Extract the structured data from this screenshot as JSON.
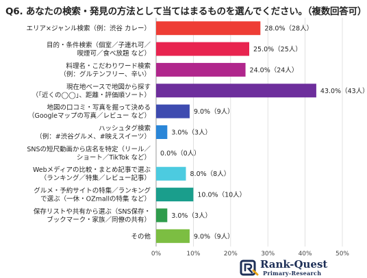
{
  "title": "Q6. あなたの検索・発見の方法として当てはまるものを選んでください。（複数回答可）",
  "chart_data": {
    "type": "bar",
    "orientation": "horizontal",
    "title": "Q6. あなたの検索・発見の方法として当てはまるものを選んでください。（複数回答可）",
    "categories": [
      [
        "エリア×ジャンル検索（例：渋谷 カレー）"
      ],
      [
        "目的・条件検索（個室／子連れ可／",
        "喫煙可／食べ放題 など）"
      ],
      [
        "料理名・こだわりワード検索",
        "（例：グルテンフリー、辛い）"
      ],
      [
        "現在地ベースで地図から探す",
        "（「近くの◯◯」、距離・評価順ソート）"
      ],
      [
        "地図の口コミ・写真を掘って決める",
        "（Googleマップの写真／レビュー など）"
      ],
      [
        "ハッシュタグ検索",
        "（例：#渋谷グルメ、#映えスイーツ）"
      ],
      [
        "SNSの短尺動画から店名を特定（リール／",
        "ショート／TikTok など）"
      ],
      [
        "Webメディアの比較・まとめ記事で選ぶ",
        "（ランキング／特集／レビュー記事）"
      ],
      [
        "グルメ・予約サイトの特集／ランキング",
        "で選ぶ（一休・OZmallの特集 など）"
      ],
      [
        "保存リストや共有から選ぶ（SNS保存・",
        "ブックマーク・家族／同僚の共有）"
      ],
      [
        "その他"
      ]
    ],
    "values": [
      28.0,
      25.0,
      24.0,
      43.0,
      9.0,
      3.0,
      0.0,
      8.0,
      10.0,
      3.0,
      9.0
    ],
    "counts": [
      28,
      25,
      24,
      43,
      9,
      3,
      0,
      8,
      10,
      3,
      9
    ],
    "value_labels": [
      "28.0%（28人）",
      "25.0%（25人）",
      "24.0%（24人）",
      "43.0%（43人）",
      "9.0%（9人）",
      "3.0%（3人）",
      "0.0%（0人）",
      "8.0%（8人）",
      "10.0%（10人）",
      "3.0%（3人）",
      "9.0%（9人）"
    ],
    "colors": [
      "#ee3d35",
      "#e8244f",
      "#b0268c",
      "#6d2e9c",
      "#3e4bb0",
      "#2a86d8",
      "#23a8e8",
      "#4ccbe0",
      "#1a9e8c",
      "#2f9c4c",
      "#7cbe42"
    ],
    "xlim": [
      0,
      50
    ],
    "xticks": [
      "0%",
      "10%",
      "20%",
      "30%",
      "40%",
      "50%"
    ],
    "grid": true,
    "xlabel": "",
    "ylabel": ""
  },
  "logo": {
    "name": "Rank-Quest",
    "subtitle": "Primary-Research"
  }
}
